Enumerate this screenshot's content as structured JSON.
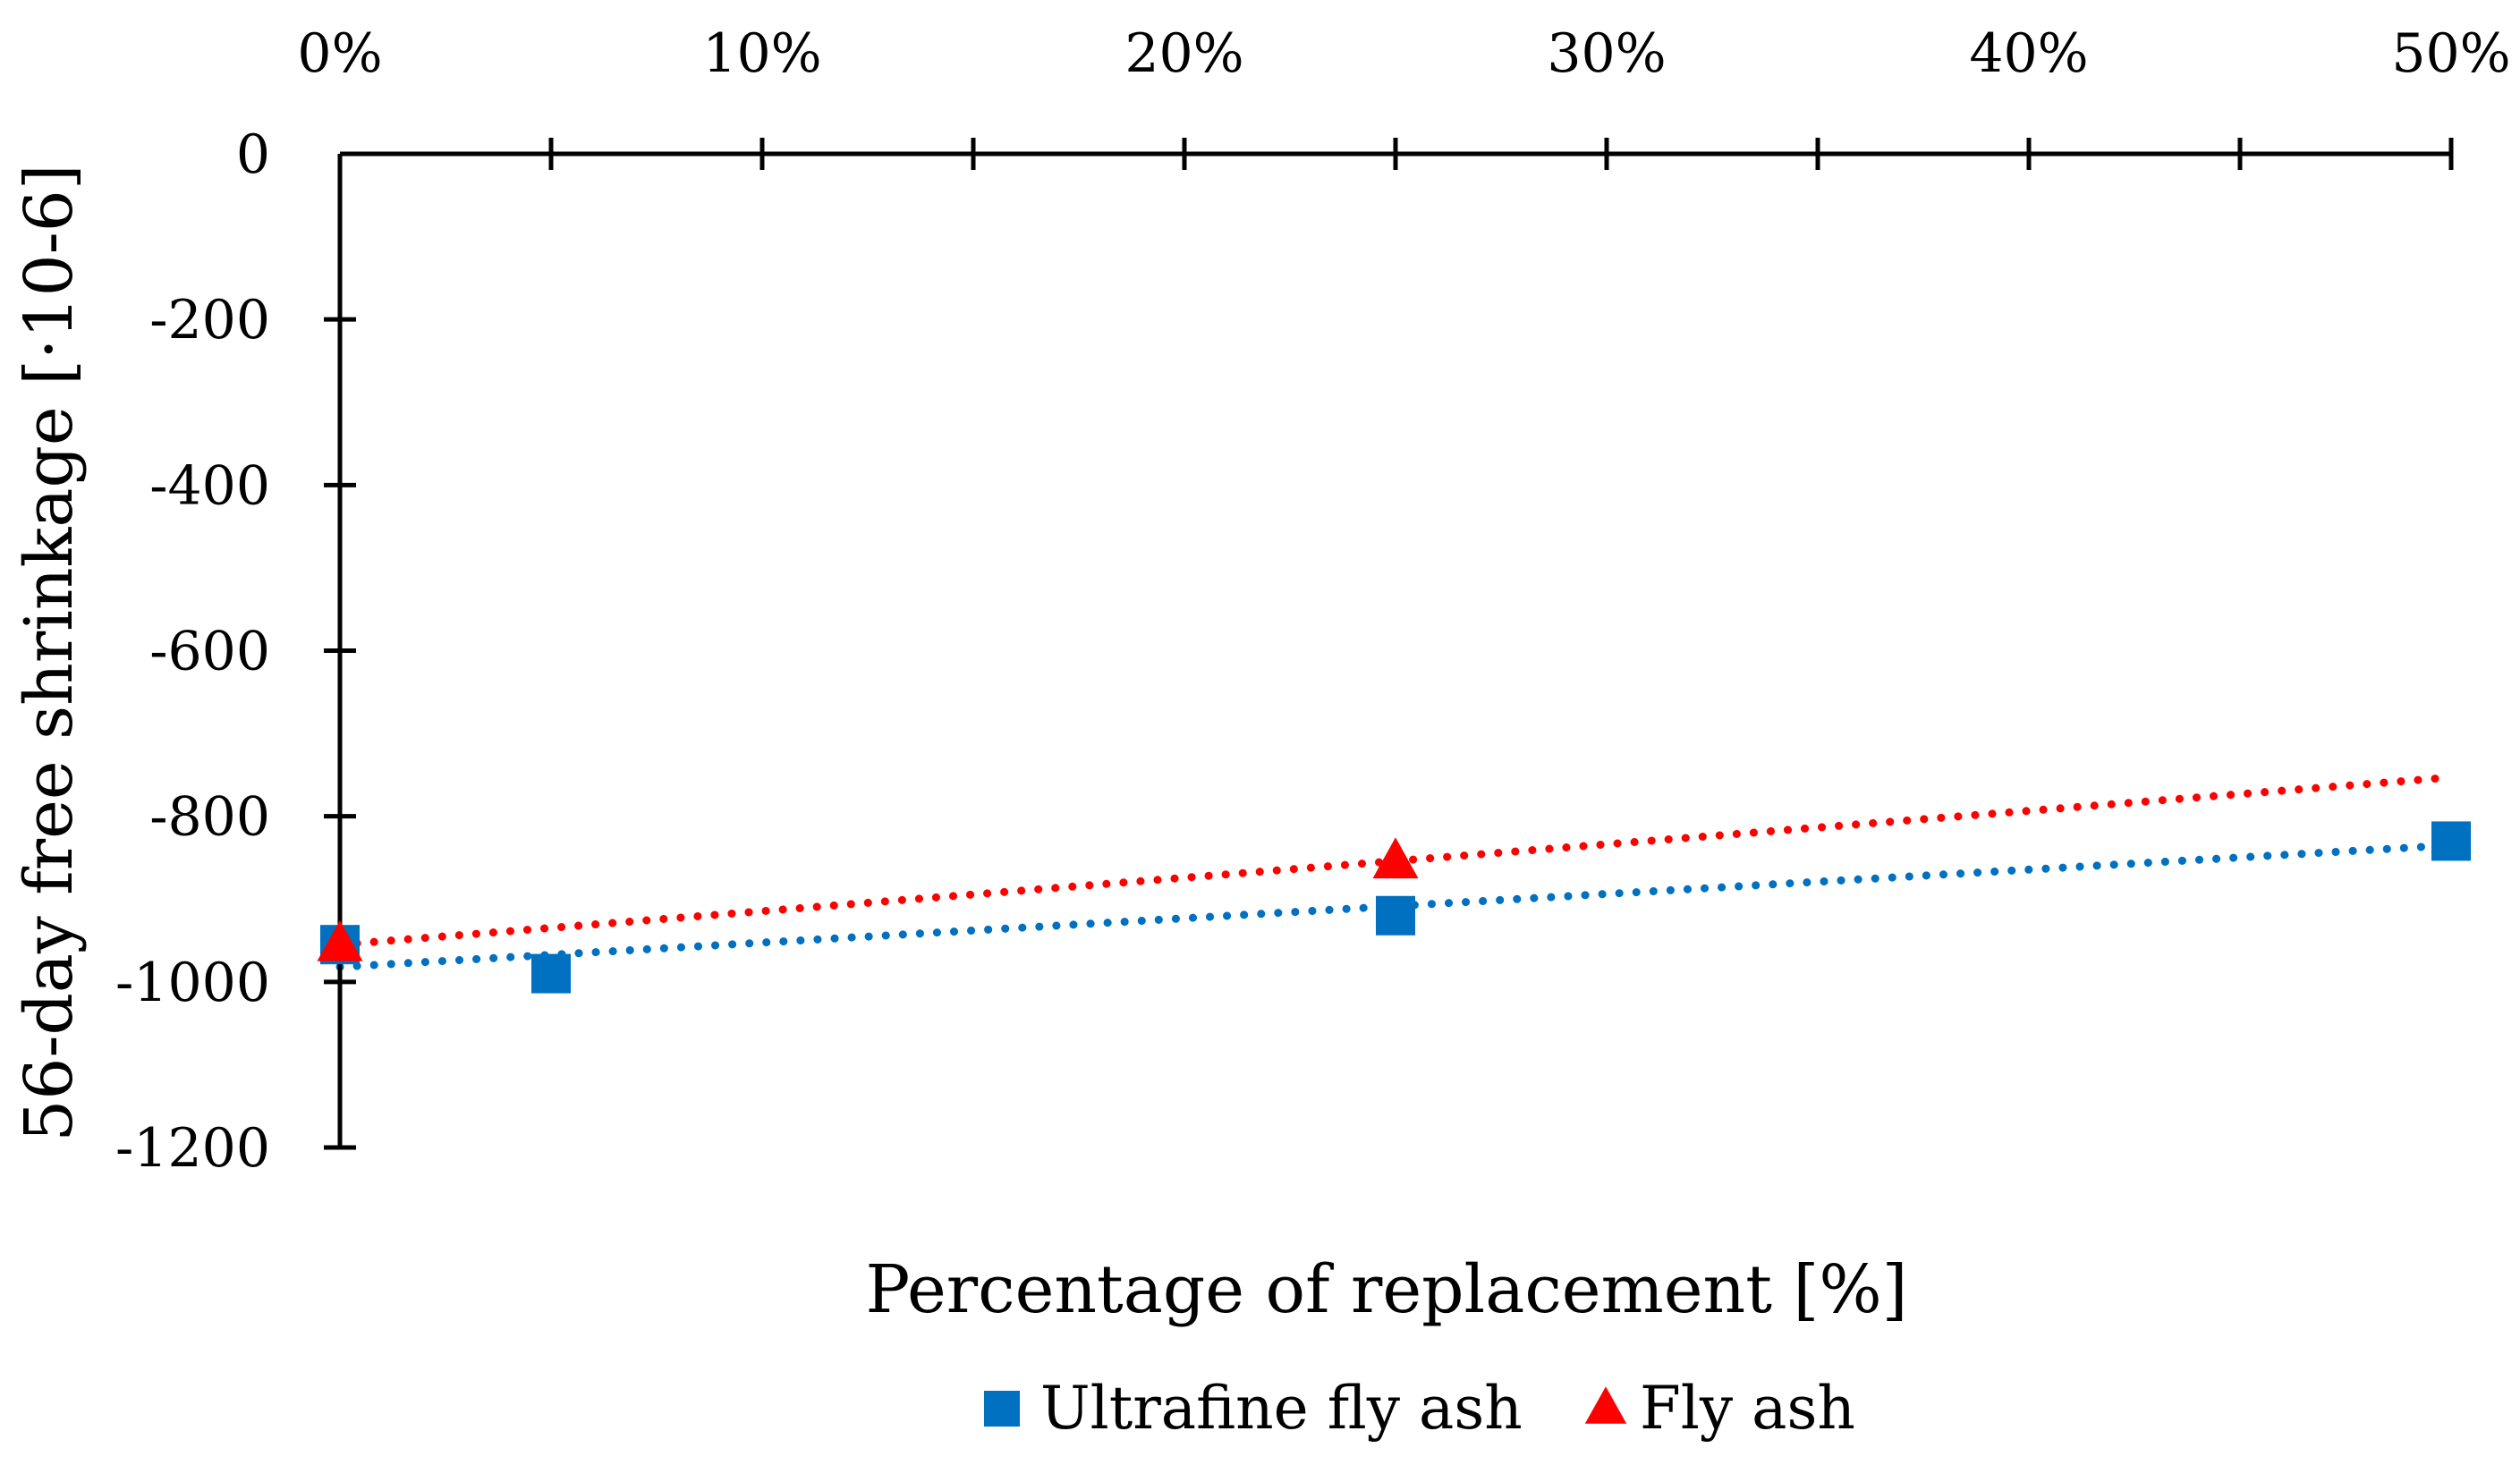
{
  "chart_data": {
    "type": "scatter",
    "title": "",
    "xlabel": "Percentage of replacement [%]",
    "ylabel": "56-day free shrinkage [·10-6]",
    "xlim": [
      0,
      50
    ],
    "ylim": [
      -1200,
      0
    ],
    "x_ticks": [
      0,
      10,
      20,
      30,
      40,
      50
    ],
    "x_tick_labels": [
      "0%",
      "10%",
      "20%",
      "30%",
      "40%",
      "50%"
    ],
    "x_minor_ticks": [
      5,
      15,
      25,
      35,
      45
    ],
    "y_ticks": [
      0,
      -200,
      -400,
      -600,
      -800,
      -1000,
      -1200
    ],
    "y_tick_labels": [
      "0",
      "-200",
      "-400",
      "-600",
      "-800",
      "-1000",
      "-1200"
    ],
    "x_axis_position": "top",
    "grid": false,
    "legend_position": "bottom-center",
    "series": [
      {
        "name": "Ultrafine fly ash",
        "marker": "square",
        "color": "#0070C0",
        "x": [
          0,
          5,
          25,
          50
        ],
        "y": [
          -955,
          -990,
          -920,
          -830
        ],
        "trendline": {
          "style": "dotted",
          "x": [
            0,
            50
          ],
          "y": [
            -982,
            -835
          ]
        }
      },
      {
        "name": "Fly ash",
        "marker": "triangle",
        "color": "#FF0000",
        "x": [
          0,
          25
        ],
        "y": [
          -955,
          -855
        ],
        "trendline": {
          "style": "dotted",
          "x": [
            0,
            50
          ],
          "y": [
            -955,
            -753
          ]
        }
      }
    ]
  }
}
